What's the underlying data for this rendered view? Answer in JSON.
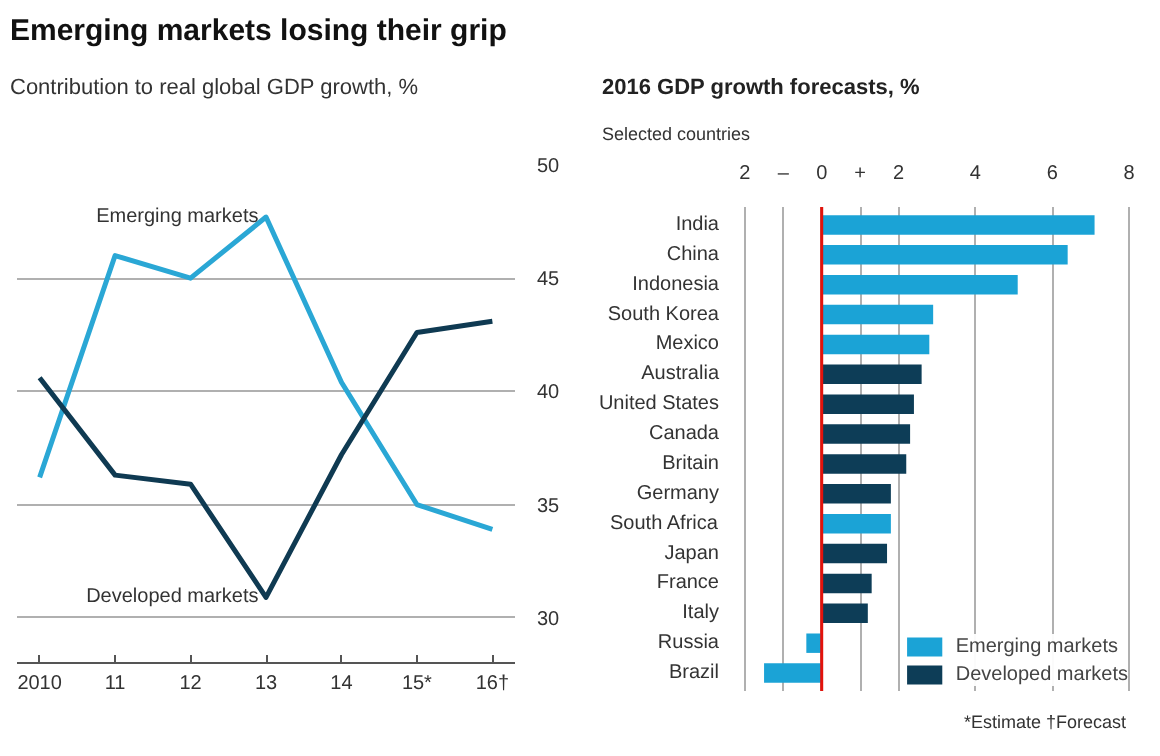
{
  "chart_data": [
    {
      "type": "line",
      "title": "Emerging markets losing their grip",
      "subtitle": "Contribution to real global GDP growth, %",
      "categories": [
        "2010",
        "11",
        "12",
        "13",
        "14",
        "15*",
        "16†"
      ],
      "series": [
        {
          "name": "Emerging markets",
          "color": "#2aa7d5",
          "values": [
            36.2,
            46.0,
            45.0,
            47.7,
            40.4,
            35.0,
            33.9
          ]
        },
        {
          "name": "Developed markets",
          "color": "#0f3a52",
          "values": [
            40.6,
            36.3,
            35.9,
            30.9,
            37.2,
            42.6,
            43.1
          ]
        }
      ],
      "ylim": [
        28,
        50
      ],
      "yticks": [
        30,
        35,
        40,
        45,
        50
      ],
      "grid": "y",
      "legend": false
    },
    {
      "type": "bar",
      "orientation": "horizontal",
      "title": "2016 GDP growth forecasts, %",
      "subtitle": "Selected countries",
      "categories": [
        "India",
        "China",
        "Indonesia",
        "South Korea",
        "Mexico",
        "Australia",
        "United States",
        "Canada",
        "Britain",
        "Germany",
        "South Africa",
        "Japan",
        "France",
        "Italy",
        "Russia",
        "Brazil"
      ],
      "series": [
        {
          "name": "Emerging markets",
          "color": "#1ba3d6",
          "values": [
            7.1,
            6.4,
            5.1,
            2.9,
            2.8,
            null,
            null,
            null,
            null,
            null,
            1.8,
            null,
            null,
            null,
            -0.4,
            -1.5
          ]
        },
        {
          "name": "Developed markets",
          "color": "#0d3d57",
          "values": [
            null,
            null,
            null,
            null,
            null,
            2.6,
            2.4,
            2.3,
            2.2,
            1.8,
            null,
            1.7,
            1.3,
            1.2,
            null,
            null
          ]
        }
      ],
      "xlim": [
        -2.1,
        8.1
      ],
      "xticks": [
        {
          "value": -2,
          "label": "2"
        },
        {
          "value": -1,
          "label": "–"
        },
        0,
        {
          "value": 1,
          "label": "+"
        },
        2,
        4,
        6,
        8
      ],
      "ref_lines": [
        {
          "axis": "x",
          "value": 0,
          "color": "#e3120b"
        }
      ],
      "grid": "x",
      "legend": "bottom right",
      "annotations": [
        "*Estimate   †Forecast"
      ]
    }
  ]
}
